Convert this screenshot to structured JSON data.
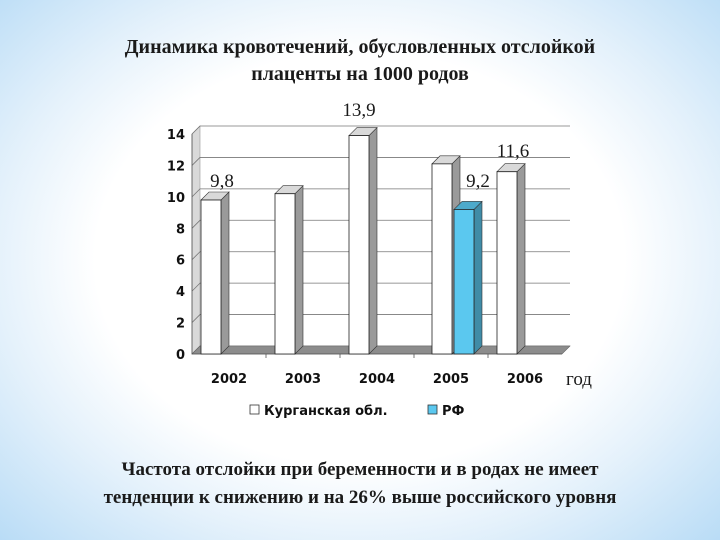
{
  "title": {
    "line1": "Динамика  кровотечений, обусловленных отслойкой",
    "line2": "плаценты на 1000 родов"
  },
  "chart_data": {
    "type": "bar",
    "categories": [
      "2002",
      "2003",
      "2004",
      "2005",
      "2006"
    ],
    "series": [
      {
        "name": "Курганская обл.",
        "values": [
          9.8,
          10.2,
          13.9,
          12.1,
          11.6
        ],
        "color": "#ffffff"
      },
      {
        "name": "РФ",
        "values": [
          null,
          null,
          null,
          9.2,
          null
        ],
        "color": "#5bc8ef"
      }
    ],
    "data_labels": [
      {
        "category": "2002",
        "series": 0,
        "text": "9,8"
      },
      {
        "category": "2004",
        "series": 0,
        "text": "13,9"
      },
      {
        "category": "2005",
        "series": 1,
        "text": "9,2"
      },
      {
        "category": "2006",
        "series": 0,
        "text": "11,6"
      }
    ],
    "xlabel": "год",
    "ylabel": "",
    "ylim": [
      0,
      14
    ],
    "yticks": [
      0,
      2,
      4,
      6,
      8,
      10,
      12,
      14
    ],
    "grid": true,
    "legend_position": "bottom",
    "style": "3d-columns"
  },
  "caption": {
    "line1": "Частота отслойки при беременности и в родах не имеет",
    "line2": "тенденции к снижению и на 26% выше российского уровня"
  }
}
